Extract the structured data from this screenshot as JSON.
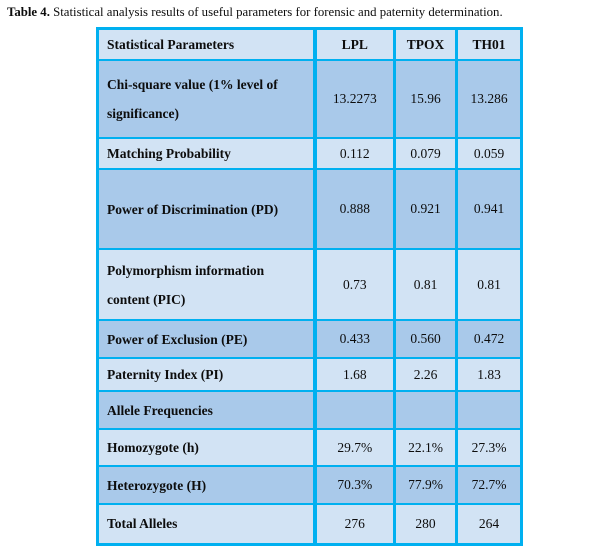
{
  "caption": {
    "prefix": "Table 4.",
    "text": " Statistical analysis results of useful parameters for forensic and paternity determination."
  },
  "table": {
    "columns": [
      "Statistical Parameters",
      "LPL",
      "TPOX",
      "TH01"
    ],
    "rows": [
      {
        "label": "Chi-square value (1% level of significance)",
        "values": [
          "13.2273",
          "15.96",
          "13.286"
        ]
      },
      {
        "label": "Matching Probability",
        "values": [
          "0.112",
          "0.079",
          "0.059"
        ]
      },
      {
        "label": "Power of Discrimination (PD)",
        "values": [
          "0.888",
          "0.921",
          "0.941"
        ]
      },
      {
        "label": "Polymorphism information content (PIC)",
        "values": [
          "0.73",
          "0.81",
          "0.81"
        ]
      },
      {
        "label": "Power of Exclusion (PE)",
        "values": [
          "0.433",
          "0.560",
          "0.472"
        ]
      },
      {
        "label": "Paternity Index (PI)",
        "values": [
          "1.68",
          "2.26",
          "1.83"
        ]
      },
      {
        "label": "Allele Frequencies",
        "values": [
          "",
          "",
          ""
        ]
      },
      {
        "label": "Homozygote (h)",
        "values": [
          "29.7%",
          "22.1%",
          "27.3%"
        ]
      },
      {
        "label": "Heterozygote (H)",
        "values": [
          "70.3%",
          "77.9%",
          "72.7%"
        ]
      },
      {
        "label": "Total Alleles",
        "values": [
          "276",
          "280",
          "264"
        ]
      }
    ],
    "colors": {
      "border": "#00B0F0",
      "row_dark": "#A9C9EA",
      "row_light": "#D2E3F4"
    }
  }
}
